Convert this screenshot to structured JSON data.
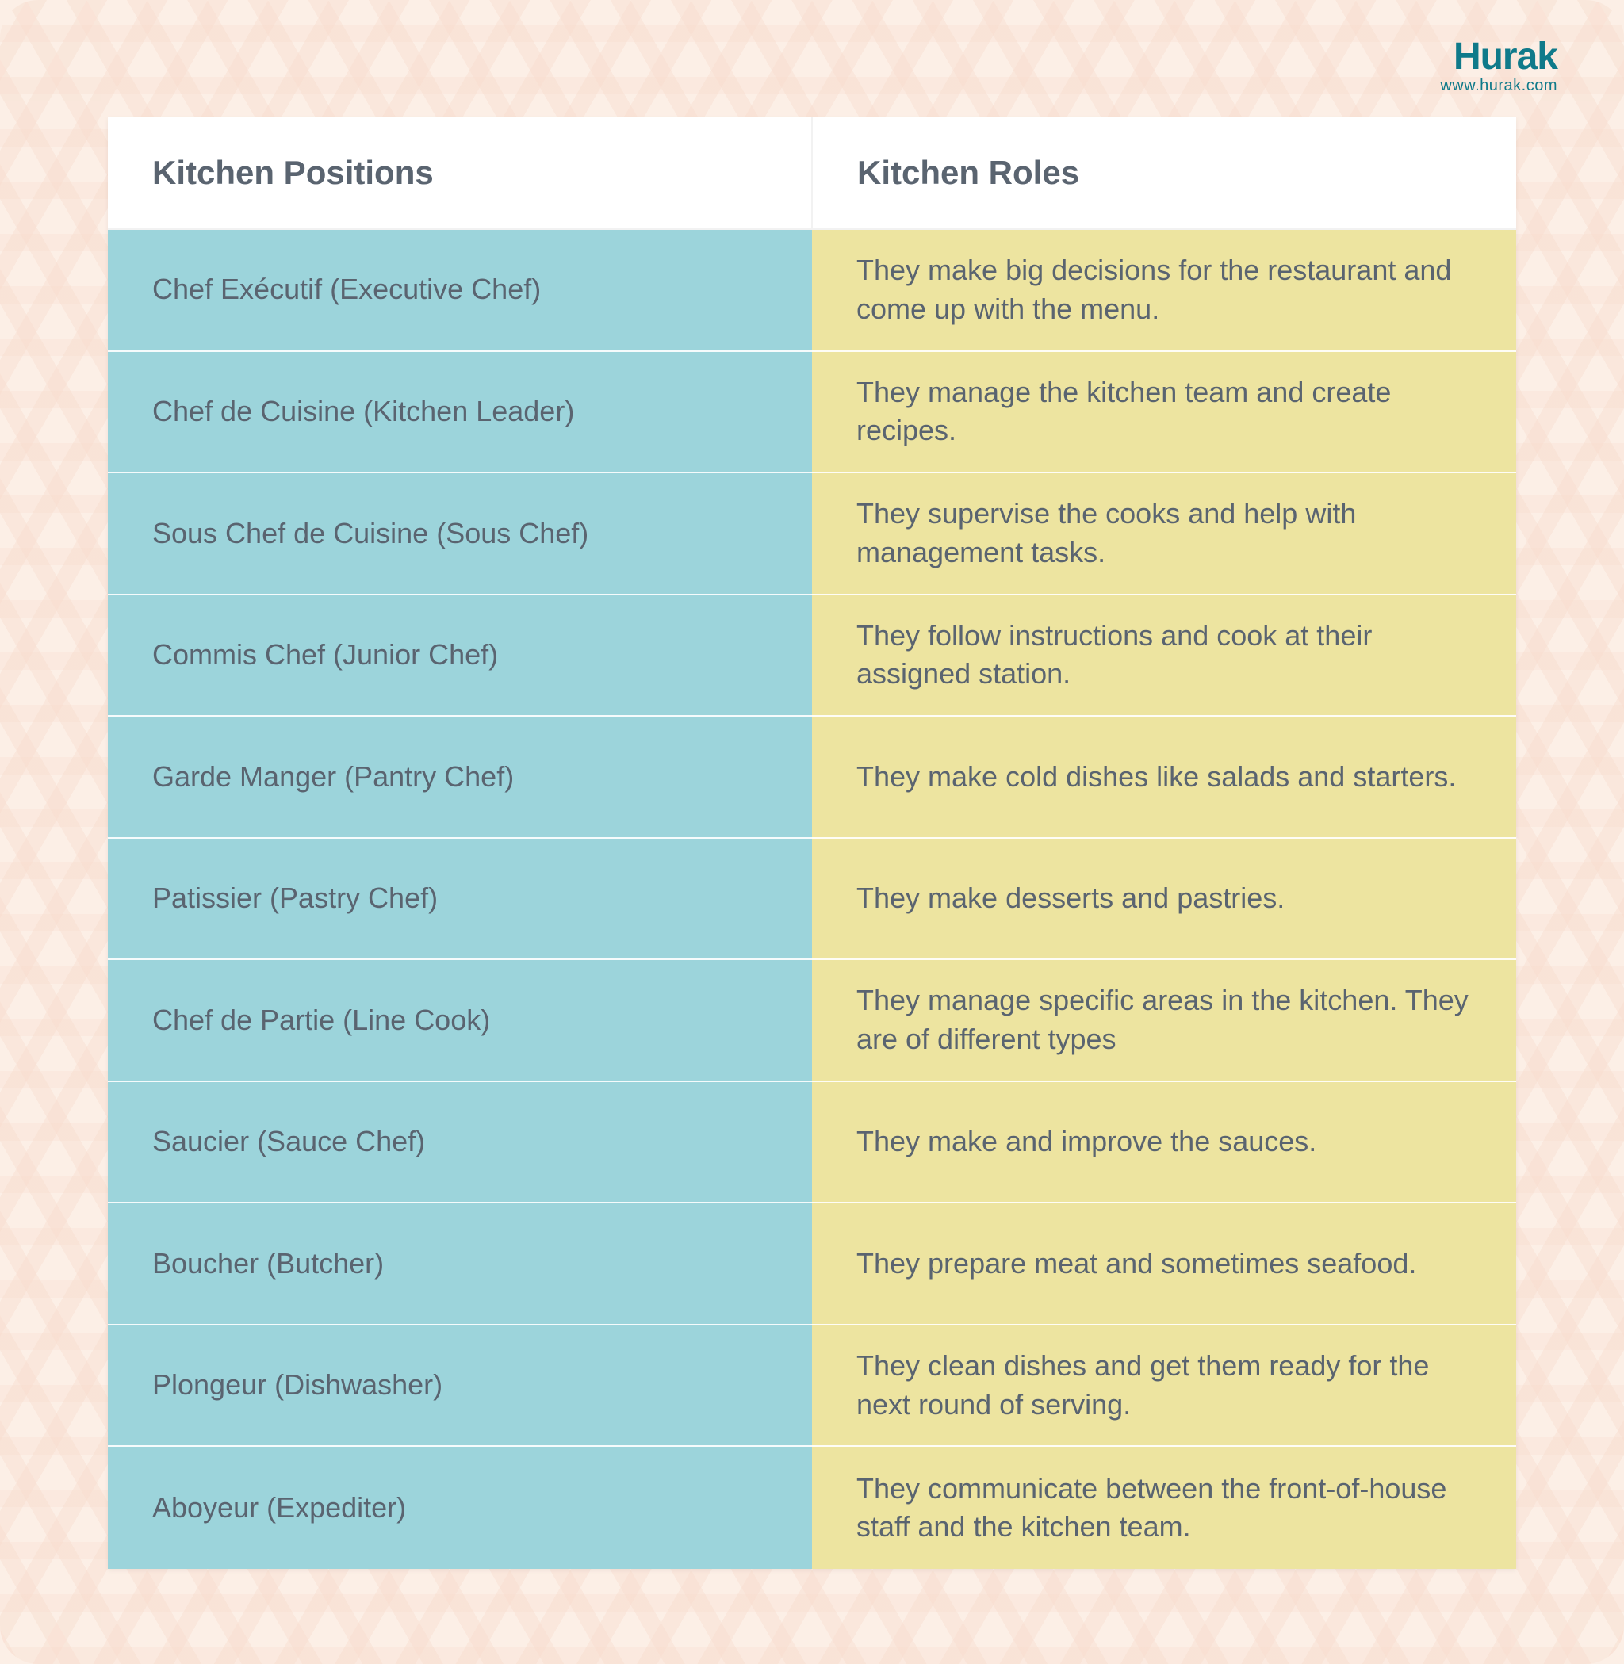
{
  "brand": {
    "name": "Hurak",
    "url": "www.hurak.com",
    "color": "#0f7a8a"
  },
  "background_color": "#fcefe6",
  "pattern_color": "#f3cfc0",
  "table": {
    "header_bg": "#ffffff",
    "header_text_color": "#5a6470",
    "cell_text_color": "#5a6470",
    "left_bg": "#9cd4db",
    "right_bg": "#ede4a0",
    "row_divider_color": "#ffffff",
    "header_fontsize": 42,
    "cell_fontsize": 36,
    "columns": [
      "Kitchen Positions",
      "Kitchen Roles"
    ],
    "rows": [
      {
        "position": "Chef Exécutif (Executive Chef)",
        "role": "They make big decisions for the restaurant and come up with the menu."
      },
      {
        "position": "Chef de Cuisine (Kitchen Leader)",
        "role": "They manage the kitchen team and create recipes."
      },
      {
        "position": "Sous Chef de Cuisine (Sous Chef)",
        "role": "They supervise the cooks and help with management tasks."
      },
      {
        "position": "Commis Chef (Junior Chef)",
        "role": "They follow instructions and cook at their assigned station."
      },
      {
        "position": "Garde Manger (Pantry Chef)",
        "role": "They make cold dishes like salads and starters."
      },
      {
        "position": "Patissier (Pastry Chef)",
        "role": "They make desserts and pastries."
      },
      {
        "position": "Chef de Partie (Line Cook)",
        "role": "They manage specific areas in the kitchen. They are of different types"
      },
      {
        "position": "Saucier (Sauce Chef)",
        "role": "They make and improve the sauces."
      },
      {
        "position": "Boucher (Butcher)",
        "role": "They prepare meat and sometimes seafood."
      },
      {
        "position": "Plongeur (Dishwasher)",
        "role": "They clean dishes and get them ready for the next round of serving."
      },
      {
        "position": "Aboyeur (Expediter)",
        "role": "They communicate between the front-of-house staff and the kitchen team."
      }
    ]
  }
}
